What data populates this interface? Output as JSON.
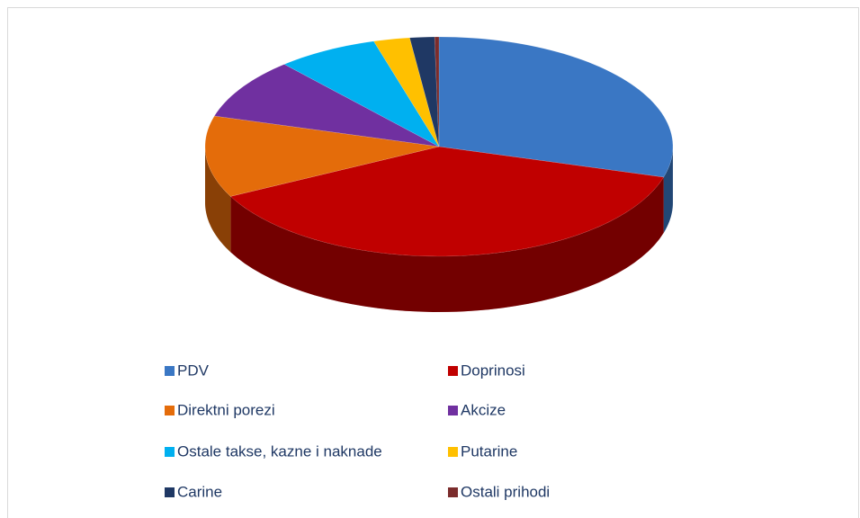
{
  "chart_data": {
    "type": "pie3d",
    "categories": [
      "PDV",
      "Doprinosi",
      "Direktni porezi",
      "Akcize",
      "Ostale takse, kazne i naknade",
      "Putarine",
      "Carine",
      "Ostali prihodi"
    ],
    "values": [
      29.5,
      38,
      12,
      9,
      7,
      2.5,
      1.7,
      0.3
    ],
    "colors": [
      "#3a77c4",
      "#c00000",
      "#e46c0a",
      "#7030a0",
      "#00b0f0",
      "#ffc000",
      "#1f3864",
      "#7b2c2c"
    ],
    "legend": "bottom"
  }
}
